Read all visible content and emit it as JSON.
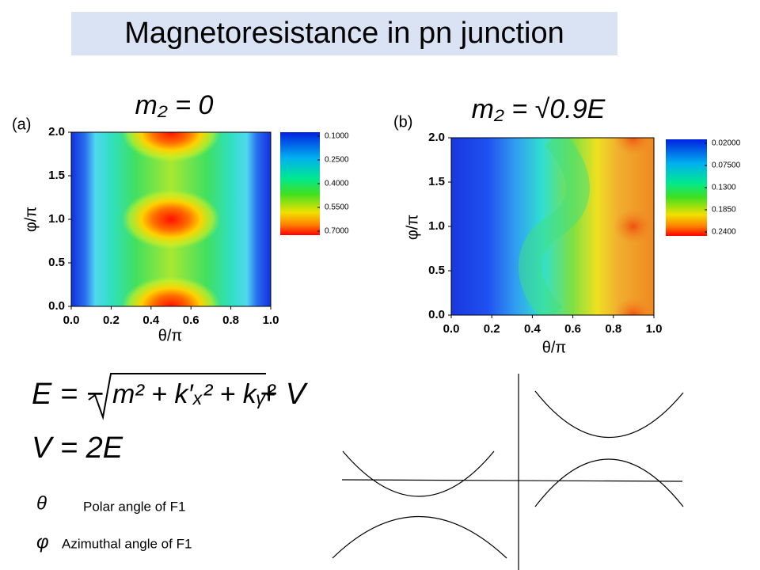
{
  "title": "Magnetoresistance in pn junction",
  "panels": [
    {
      "label": "(a)",
      "title": "m₂ = 0",
      "xlabel": "θ/π",
      "ylabel": "φ/π",
      "xticks": [
        {
          "value": 0,
          "label": "0.0"
        },
        {
          "value": 0.2,
          "label": "0.2"
        },
        {
          "value": 0.4,
          "label": "0.4"
        },
        {
          "value": 0.6,
          "label": "0.6"
        },
        {
          "value": 0.8,
          "label": "0.8"
        },
        {
          "value": 1,
          "label": "1.0"
        }
      ],
      "yticks": [
        {
          "value": 0,
          "label": "0.0"
        },
        {
          "value": 0.5,
          "label": "0.5"
        },
        {
          "value": 1,
          "label": "1.0"
        },
        {
          "value": 1.5,
          "label": "1.5"
        },
        {
          "value": 2,
          "label": "2.0"
        }
      ],
      "colorbar": [
        {
          "value": 0.1,
          "label": "0.1000"
        },
        {
          "value": 0.25,
          "label": "0.2500"
        },
        {
          "value": 0.4,
          "label": "0.4000"
        },
        {
          "value": 0.55,
          "label": "0.5500"
        },
        {
          "value": 0.7,
          "label": "0.7000"
        }
      ]
    },
    {
      "label": "(b)",
      "title": "m₂ = √0.9E",
      "xlabel": "θ/π",
      "ylabel": "φ/π",
      "xticks": [
        {
          "value": 0,
          "label": "0.0"
        },
        {
          "value": 0.2,
          "label": "0.2"
        },
        {
          "value": 0.4,
          "label": "0.4"
        },
        {
          "value": 0.6,
          "label": "0.6"
        },
        {
          "value": 0.8,
          "label": "0.8"
        },
        {
          "value": 1,
          "label": "1.0"
        }
      ],
      "yticks": [
        {
          "value": 0,
          "label": "0.0"
        },
        {
          "value": 0.5,
          "label": "0.5"
        },
        {
          "value": 1,
          "label": "1.0"
        },
        {
          "value": 1.5,
          "label": "1.5"
        },
        {
          "value": 2,
          "label": "2.0"
        }
      ],
      "colorbar": [
        {
          "value": 0.02,
          "label": "0.02000"
        },
        {
          "value": 0.075,
          "label": "0.07500"
        },
        {
          "value": 0.13,
          "label": "0.1300"
        },
        {
          "value": 0.185,
          "label": "0.1850"
        },
        {
          "value": 0.24,
          "label": "0.2400"
        }
      ]
    }
  ],
  "equations": {
    "energy_lhs": "E = −",
    "energy_radicand": "m² + k′ₓ² + kᵧ²",
    "energy_rhs": "+ V",
    "potential": "V = 2E"
  },
  "legend": [
    {
      "symbol": "θ",
      "text": "Polar angle of F1"
    },
    {
      "symbol": "φ",
      "text": "Azimuthal angle of F1"
    }
  ]
}
